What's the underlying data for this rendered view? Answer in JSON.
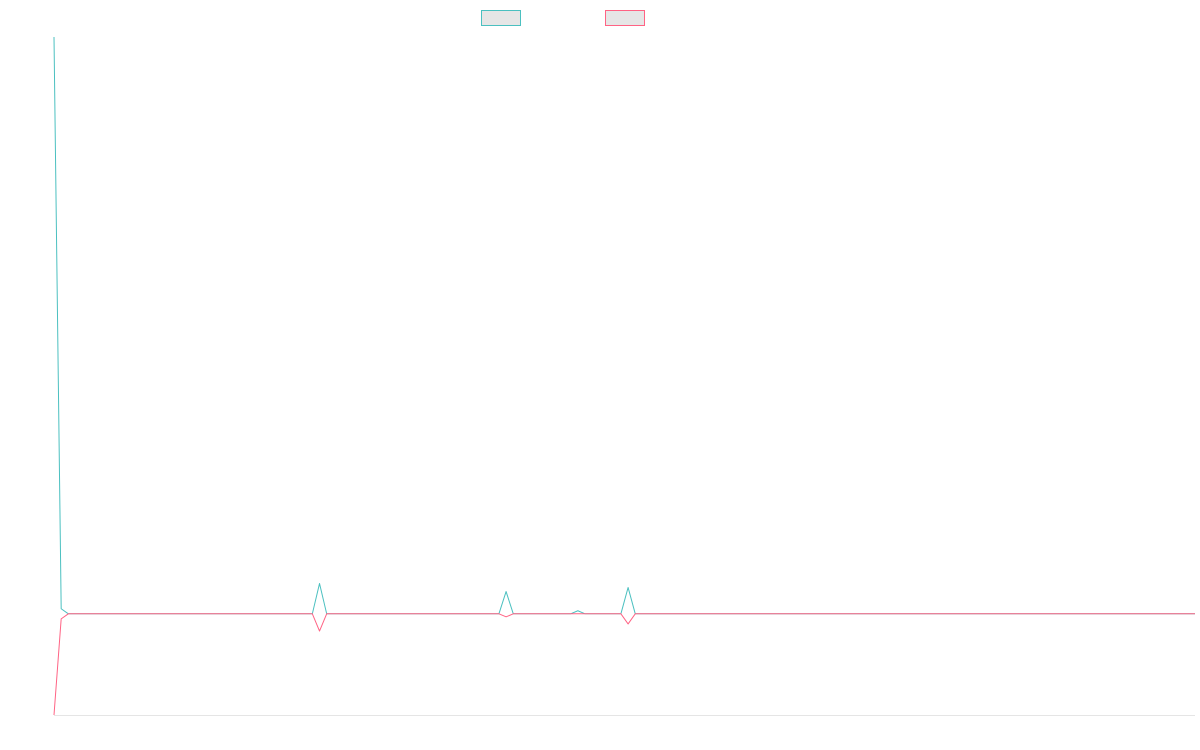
{
  "chart_data": {
    "type": "line",
    "title": "",
    "xlabel": "",
    "ylabel": "",
    "grid": false,
    "legend_position": "top-center",
    "x_count": 160,
    "y_range": [
      -1,
      5.7
    ],
    "series": [
      {
        "color": "#4bc0c0",
        "points": [
          [
            0,
            5.7
          ],
          [
            1,
            0.05
          ],
          [
            37,
            0.3
          ],
          [
            63,
            0.22
          ],
          [
            73,
            0.03
          ],
          [
            80,
            0.26
          ]
        ]
      },
      {
        "color": "#ff6384",
        "points": [
          [
            0,
            -1
          ],
          [
            1,
            -0.05
          ],
          [
            37,
            -0.17
          ],
          [
            63,
            -0.03
          ],
          [
            80,
            -0.1
          ]
        ]
      }
    ]
  }
}
